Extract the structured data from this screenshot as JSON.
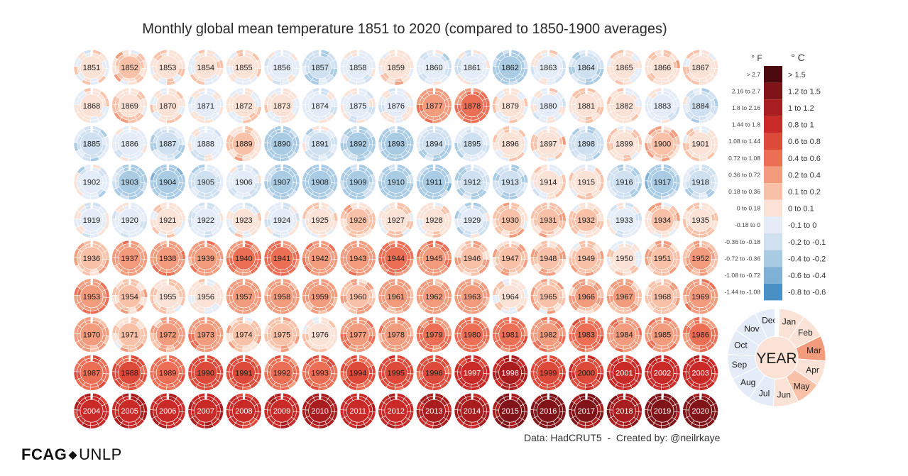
{
  "title": "Monthly global mean temperature 1851 to 2020 (compared to 1850-1900 averages)",
  "credit": "Data: HadCRUT5  -  Created by: @neilrkaye",
  "logo": {
    "left": "FCAG",
    "separator": "◆",
    "right": "UNLP"
  },
  "colors": {
    "ring_stroke": "#ffffff",
    "bin_colors": [
      "#4a90c4",
      "#7fb1d6",
      "#a9cbe4",
      "#cfe0f0",
      "#e3ecf7",
      "#fbe2d6",
      "#f8c1a8",
      "#f39b7d",
      "#ec6f55",
      "#de4a3a",
      "#c92a27",
      "#a91d1f",
      "#801418",
      "#4d0a0e"
    ]
  },
  "legend": {
    "f_header": "° F",
    "c_header": "° C",
    "entries": [
      {
        "f": "> 2.7",
        "c": "> 1.5"
      },
      {
        "f": "2.16 to 2.7",
        "c": "1.2 to 1.5"
      },
      {
        "f": "1.8 to 2.16",
        "c": "1 to 1.2"
      },
      {
        "f": "1.44 to 1.8",
        "c": "0.8 to 1"
      },
      {
        "f": "1.08 to 1.44",
        "c": "0.6 to 0.8"
      },
      {
        "f": "0.72 to 1.08",
        "c": "0.4 to 0.6"
      },
      {
        "f": "0.36 to 0.72",
        "c": "0.2 to 0.4"
      },
      {
        "f": "0.18 to 0.36",
        "c": "0.1 to 0.2"
      },
      {
        "f": "0 to 0.18",
        "c": "0 to 0.1"
      },
      {
        "f": "-0.18 to 0",
        "c": "-0.1 to 0"
      },
      {
        "f": "-0.36 to -0.18",
        "c": "-0.2 to -0.1"
      },
      {
        "f": "-0.72 to -0.36",
        "c": "-0.4 to -0.2"
      },
      {
        "f": "-1.08 to -0.72",
        "c": "-0.6 to -0.4"
      },
      {
        "f": "-1.44 to -1.08",
        "c": "-0.8 to -0.6"
      }
    ]
  },
  "key": {
    "center_label": "YEAR",
    "months": [
      "Jan",
      "Feb",
      "Mar",
      "Apr",
      "May",
      "Jun",
      "Jul",
      "Aug",
      "Sep",
      "Oct",
      "Nov",
      "Dec"
    ],
    "month_anomalies": [
      0.05,
      0.05,
      0.3,
      0.05,
      0.15,
      0.05,
      -0.05,
      -0.05,
      -0.05,
      -0.05,
      -0.05,
      -0.05
    ],
    "year_anomaly": 0.05
  },
  "chart_data": {
    "type": "heatmap",
    "title": "Monthly global mean temperature 1851 to 2020 (compared to 1850-1900 averages)",
    "units": "°C",
    "baseline": "1850-1900",
    "layout": "radial-per-year",
    "years_per_row": 17,
    "years": [
      {
        "year": "1851",
        "annual": 0.02
      },
      {
        "year": "1852",
        "annual": 0.12
      },
      {
        "year": "1853",
        "annual": 0.06
      },
      {
        "year": "1854",
        "annual": 0.04
      },
      {
        "year": "1855",
        "annual": 0.04
      },
      {
        "year": "1856",
        "annual": -0.06
      },
      {
        "year": "1857",
        "annual": -0.16
      },
      {
        "year": "1858",
        "annual": -0.05
      },
      {
        "year": "1859",
        "annual": 0.07
      },
      {
        "year": "1860",
        "annual": -0.08
      },
      {
        "year": "1861",
        "annual": -0.08
      },
      {
        "year": "1862",
        "annual": -0.28
      },
      {
        "year": "1863",
        "annual": -0.02
      },
      {
        "year": "1864",
        "annual": -0.18
      },
      {
        "year": "1865",
        "annual": 0.02
      },
      {
        "year": "1866",
        "annual": 0.08
      },
      {
        "year": "1867",
        "annual": 0.04
      },
      {
        "year": "1868",
        "annual": 0.03
      },
      {
        "year": "1869",
        "annual": 0.08
      },
      {
        "year": "1870",
        "annual": 0.02
      },
      {
        "year": "1871",
        "annual": -0.02
      },
      {
        "year": "1872",
        "annual": 0.04
      },
      {
        "year": "1873",
        "annual": 0.03
      },
      {
        "year": "1874",
        "annual": -0.06
      },
      {
        "year": "1875",
        "annual": -0.05
      },
      {
        "year": "1876",
        "annual": -0.04
      },
      {
        "year": "1877",
        "annual": 0.35
      },
      {
        "year": "1878",
        "annual": 0.45
      },
      {
        "year": "1879",
        "annual": 0.03
      },
      {
        "year": "1880",
        "annual": -0.02
      },
      {
        "year": "1881",
        "annual": 0.06
      },
      {
        "year": "1882",
        "annual": 0.03
      },
      {
        "year": "1883",
        "annual": -0.04
      },
      {
        "year": "1884",
        "annual": -0.12
      },
      {
        "year": "1885",
        "annual": -0.13
      },
      {
        "year": "1886",
        "annual": -0.08
      },
      {
        "year": "1887",
        "annual": -0.16
      },
      {
        "year": "1888",
        "annual": -0.06
      },
      {
        "year": "1889",
        "annual": 0.1
      },
      {
        "year": "1890",
        "annual": -0.25
      },
      {
        "year": "1891",
        "annual": -0.12
      },
      {
        "year": "1892",
        "annual": -0.22
      },
      {
        "year": "1893",
        "annual": -0.26
      },
      {
        "year": "1894",
        "annual": -0.19
      },
      {
        "year": "1895",
        "annual": -0.14
      },
      {
        "year": "1896",
        "annual": 0.05
      },
      {
        "year": "1897",
        "annual": 0.07
      },
      {
        "year": "1898",
        "annual": -0.16
      },
      {
        "year": "1899",
        "annual": 0.06
      },
      {
        "year": "1900",
        "annual": 0.15
      },
      {
        "year": "1901",
        "annual": 0.05
      },
      {
        "year": "1902",
        "annual": -0.08
      },
      {
        "year": "1903",
        "annual": -0.22
      },
      {
        "year": "1904",
        "annual": -0.32
      },
      {
        "year": "1905",
        "annual": -0.13
      },
      {
        "year": "1906",
        "annual": -0.06
      },
      {
        "year": "1907",
        "annual": -0.24
      },
      {
        "year": "1908",
        "annual": -0.26
      },
      {
        "year": "1909",
        "annual": -0.26
      },
      {
        "year": "1910",
        "annual": -0.24
      },
      {
        "year": "1911",
        "annual": -0.28
      },
      {
        "year": "1912",
        "annual": -0.18
      },
      {
        "year": "1913",
        "annual": -0.18
      },
      {
        "year": "1914",
        "annual": 0.02
      },
      {
        "year": "1915",
        "annual": 0.05
      },
      {
        "year": "1916",
        "annual": -0.17
      },
      {
        "year": "1917",
        "annual": -0.3
      },
      {
        "year": "1918",
        "annual": -0.16
      },
      {
        "year": "1919",
        "annual": -0.06
      },
      {
        "year": "1920",
        "annual": -0.04
      },
      {
        "year": "1921",
        "annual": 0.04
      },
      {
        "year": "1922",
        "annual": -0.06
      },
      {
        "year": "1923",
        "annual": 0.0
      },
      {
        "year": "1924",
        "annual": -0.06
      },
      {
        "year": "1925",
        "annual": 0.04
      },
      {
        "year": "1926",
        "annual": 0.14
      },
      {
        "year": "1927",
        "annual": 0.08
      },
      {
        "year": "1928",
        "annual": 0.06
      },
      {
        "year": "1929",
        "annual": -0.1
      },
      {
        "year": "1930",
        "annual": 0.12
      },
      {
        "year": "1931",
        "annual": 0.16
      },
      {
        "year": "1932",
        "annual": 0.12
      },
      {
        "year": "1933",
        "annual": -0.04
      },
      {
        "year": "1934",
        "annual": 0.1
      },
      {
        "year": "1935",
        "annual": 0.06
      },
      {
        "year": "1936",
        "annual": 0.14
      },
      {
        "year": "1937",
        "annual": 0.28
      },
      {
        "year": "1938",
        "annual": 0.3
      },
      {
        "year": "1939",
        "annual": 0.3
      },
      {
        "year": "1940",
        "annual": 0.4
      },
      {
        "year": "1941",
        "annual": 0.42
      },
      {
        "year": "1942",
        "annual": 0.32
      },
      {
        "year": "1943",
        "annual": 0.32
      },
      {
        "year": "1944",
        "annual": 0.48
      },
      {
        "year": "1945",
        "annual": 0.36
      },
      {
        "year": "1946",
        "annual": 0.16
      },
      {
        "year": "1947",
        "annual": 0.18
      },
      {
        "year": "1948",
        "annual": 0.16
      },
      {
        "year": "1949",
        "annual": 0.12
      },
      {
        "year": "1950",
        "annual": 0.06
      },
      {
        "year": "1951",
        "annual": 0.18
      },
      {
        "year": "1952",
        "annual": 0.24
      },
      {
        "year": "1953",
        "annual": 0.34
      },
      {
        "year": "1954",
        "annual": 0.12
      },
      {
        "year": "1955",
        "annual": 0.06
      },
      {
        "year": "1956",
        "annual": 0.02
      },
      {
        "year": "1957",
        "annual": 0.26
      },
      {
        "year": "1958",
        "annual": 0.32
      },
      {
        "year": "1959",
        "annual": 0.26
      },
      {
        "year": "1960",
        "annual": 0.18
      },
      {
        "year": "1961",
        "annual": 0.26
      },
      {
        "year": "1962",
        "annual": 0.26
      },
      {
        "year": "1963",
        "annual": 0.28
      },
      {
        "year": "1964",
        "annual": 0.04
      },
      {
        "year": "1965",
        "annual": 0.12
      },
      {
        "year": "1966",
        "annual": 0.2
      },
      {
        "year": "1967",
        "annual": 0.22
      },
      {
        "year": "1968",
        "annual": 0.18
      },
      {
        "year": "1969",
        "annual": 0.3
      },
      {
        "year": "1970",
        "annual": 0.24
      },
      {
        "year": "1971",
        "annual": 0.12
      },
      {
        "year": "1972",
        "annual": 0.22
      },
      {
        "year": "1973",
        "annual": 0.36
      },
      {
        "year": "1974",
        "annual": 0.12
      },
      {
        "year": "1975",
        "annual": 0.16
      },
      {
        "year": "1976",
        "annual": 0.06
      },
      {
        "year": "1977",
        "annual": 0.38
      },
      {
        "year": "1978",
        "annual": 0.3
      },
      {
        "year": "1979",
        "annual": 0.4
      },
      {
        "year": "1980",
        "annual": 0.46
      },
      {
        "year": "1981",
        "annual": 0.5
      },
      {
        "year": "1982",
        "annual": 0.36
      },
      {
        "year": "1983",
        "annual": 0.52
      },
      {
        "year": "1984",
        "annual": 0.36
      },
      {
        "year": "1985",
        "annual": 0.34
      },
      {
        "year": "1986",
        "annual": 0.4
      },
      {
        "year": "1987",
        "annual": 0.56
      },
      {
        "year": "1988",
        "annual": 0.6
      },
      {
        "year": "1989",
        "annual": 0.5
      },
      {
        "year": "1990",
        "annual": 0.7
      },
      {
        "year": "1991",
        "annual": 0.68
      },
      {
        "year": "1992",
        "annual": 0.5
      },
      {
        "year": "1993",
        "annual": 0.54
      },
      {
        "year": "1994",
        "annual": 0.6
      },
      {
        "year": "1995",
        "annual": 0.72
      },
      {
        "year": "1996",
        "annual": 0.62
      },
      {
        "year": "1997",
        "annual": 0.8
      },
      {
        "year": "1998",
        "annual": 1.0
      },
      {
        "year": "1999",
        "annual": 0.74
      },
      {
        "year": "2000",
        "annual": 0.74
      },
      {
        "year": "2001",
        "annual": 0.86
      },
      {
        "year": "2002",
        "annual": 0.94
      },
      {
        "year": "2003",
        "annual": 0.92
      },
      {
        "year": "2004",
        "annual": 0.88
      },
      {
        "year": "2005",
        "annual": 0.98
      },
      {
        "year": "2006",
        "annual": 0.94
      },
      {
        "year": "2007",
        "annual": 0.96
      },
      {
        "year": "2008",
        "annual": 0.84
      },
      {
        "year": "2009",
        "annual": 0.96
      },
      {
        "year": "2010",
        "annual": 1.04
      },
      {
        "year": "2011",
        "annual": 0.92
      },
      {
        "year": "2012",
        "annual": 0.96
      },
      {
        "year": "2013",
        "annual": 1.0
      },
      {
        "year": "2014",
        "annual": 1.06
      },
      {
        "year": "2015",
        "annual": 1.2
      },
      {
        "year": "2016",
        "annual": 1.3
      },
      {
        "year": "2017",
        "annual": 1.2
      },
      {
        "year": "2018",
        "annual": 1.12
      },
      {
        "year": "2019",
        "annual": 1.26
      },
      {
        "year": "2020",
        "annual": 1.3
      }
    ],
    "colorbar_bins_c": [
      [
        -0.8,
        -0.6
      ],
      [
        -0.6,
        -0.4
      ],
      [
        -0.4,
        -0.2
      ],
      [
        -0.2,
        -0.1
      ],
      [
        -0.1,
        0
      ],
      [
        0,
        0.1
      ],
      [
        0.1,
        0.2
      ],
      [
        0.2,
        0.4
      ],
      [
        0.4,
        0.6
      ],
      [
        0.6,
        0.8
      ],
      [
        0.8,
        1
      ],
      [
        1,
        1.2
      ],
      [
        1.2,
        1.5
      ],
      [
        1.5,
        2.0
      ]
    ]
  }
}
